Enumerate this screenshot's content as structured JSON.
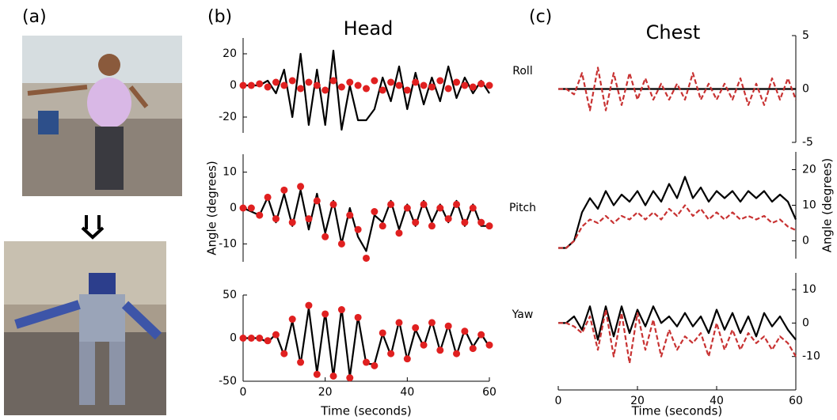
{
  "panel_labels": [
    "(a)",
    "(b)",
    "(c)"
  ],
  "chart_data": [
    {
      "type": "line",
      "title": "Head",
      "annotation": "Roll",
      "xlim": [
        0,
        60
      ],
      "ylim": [
        -30,
        30
      ],
      "yticks": [
        -20,
        0,
        20
      ],
      "y_axis_side": "left",
      "x": [
        0,
        2,
        4,
        6,
        8,
        10,
        12,
        14,
        16,
        18,
        20,
        22,
        24,
        26,
        28,
        30,
        32,
        34,
        36,
        38,
        40,
        42,
        44,
        46,
        48,
        50,
        52,
        54,
        56,
        58,
        60
      ],
      "series": [
        {
          "color": "#000000",
          "style": "line",
          "values": [
            0,
            0,
            0,
            3,
            -5,
            10,
            -20,
            20,
            -25,
            10,
            -25,
            22,
            -28,
            0,
            -22,
            -22,
            -15,
            5,
            -10,
            12,
            -15,
            8,
            -12,
            5,
            -10,
            12,
            -8,
            5,
            -5,
            3,
            -5
          ]
        },
        {
          "color": "#e02020",
          "style": "dots",
          "values": [
            0,
            0,
            1,
            -1,
            2,
            0,
            3,
            -2,
            2,
            0,
            -3,
            3,
            -1,
            2,
            0,
            -2,
            3,
            -3,
            2,
            0,
            -3,
            2,
            0,
            -1,
            3,
            -2,
            2,
            0,
            -1,
            1,
            0
          ]
        }
      ]
    },
    {
      "type": "line",
      "annotation": "Pitch",
      "y_label": "Angle (degrees)",
      "xlim": [
        0,
        60
      ],
      "ylim": [
        -15,
        15
      ],
      "yticks": [
        -10,
        0,
        10
      ],
      "y_axis_side": "left",
      "x": [
        0,
        2,
        4,
        6,
        8,
        10,
        12,
        14,
        16,
        18,
        20,
        22,
        24,
        26,
        28,
        30,
        32,
        34,
        36,
        38,
        40,
        42,
        44,
        46,
        48,
        50,
        52,
        54,
        56,
        58,
        60
      ],
      "series": [
        {
          "color": "#000000",
          "style": "line",
          "values": [
            0,
            -1,
            -2,
            3,
            -4,
            4,
            -5,
            5,
            -6,
            4,
            -7,
            2,
            -10,
            0,
            -8,
            -12,
            -2,
            -4,
            2,
            -6,
            1,
            -5,
            2,
            -4,
            1,
            -4,
            2,
            -5,
            1,
            -5,
            -5
          ]
        },
        {
          "color": "#e02020",
          "style": "dots",
          "values": [
            0,
            0,
            -2,
            3,
            -3,
            5,
            -4,
            6,
            -3,
            2,
            -8,
            1,
            -10,
            -2,
            -6,
            -14,
            -1,
            -5,
            1,
            -7,
            0,
            -4,
            1,
            -5,
            0,
            -3,
            1,
            -4,
            0,
            -4,
            -5
          ]
        }
      ]
    },
    {
      "type": "line",
      "annotation": "Yaw",
      "x_label": "Time (seconds)",
      "xlim": [
        0,
        60
      ],
      "ylim": [
        -50,
        50
      ],
      "yticks": [
        -50,
        0,
        50
      ],
      "xticks": [
        0,
        20,
        40,
        60
      ],
      "y_axis_side": "left",
      "x": [
        0,
        2,
        4,
        6,
        8,
        10,
        12,
        14,
        16,
        18,
        20,
        22,
        24,
        26,
        28,
        30,
        32,
        34,
        36,
        38,
        40,
        42,
        44,
        46,
        48,
        50,
        52,
        54,
        56,
        58,
        60
      ],
      "series": [
        {
          "color": "#000000",
          "style": "line",
          "values": [
            0,
            0,
            0,
            -5,
            5,
            -20,
            20,
            -30,
            35,
            -40,
            30,
            -45,
            35,
            -45,
            25,
            -30,
            -30,
            5,
            -20,
            20,
            -25,
            10,
            -10,
            20,
            -15,
            15,
            -20,
            10,
            -10,
            5,
            -10
          ]
        },
        {
          "color": "#e02020",
          "style": "dots",
          "values": [
            0,
            0,
            0,
            -3,
            4,
            -18,
            22,
            -28,
            38,
            -42,
            28,
            -44,
            33,
            -46,
            24,
            -28,
            -32,
            6,
            -18,
            18,
            -24,
            12,
            -8,
            18,
            -14,
            14,
            -18,
            8,
            -12,
            4,
            -8
          ]
        }
      ]
    },
    {
      "type": "line",
      "title": "Chest",
      "xlim": [
        0,
        60
      ],
      "ylim": [
        -5,
        5
      ],
      "yticks": [
        -5,
        0,
        5
      ],
      "y_axis_side": "right",
      "x": [
        0,
        2,
        4,
        6,
        8,
        10,
        12,
        14,
        16,
        18,
        20,
        22,
        24,
        26,
        28,
        30,
        32,
        34,
        36,
        38,
        40,
        42,
        44,
        46,
        48,
        50,
        52,
        54,
        56,
        58,
        60
      ],
      "series": [
        {
          "color": "#000000",
          "style": "line",
          "values": [
            0,
            0,
            0,
            0,
            0,
            0,
            0,
            0,
            0,
            0,
            0,
            0,
            0,
            0,
            0,
            0,
            0,
            0,
            0,
            0,
            0,
            0,
            0,
            0,
            0,
            0,
            0,
            0,
            0,
            0,
            0
          ]
        },
        {
          "color": "#c83232",
          "style": "dashed",
          "values": [
            0,
            0,
            -0.5,
            1.5,
            -2,
            2,
            -2,
            1.5,
            -1.5,
            1.5,
            -1,
            1,
            -1,
            0.5,
            -1,
            0.5,
            -1,
            1.5,
            -1,
            0.5,
            -1,
            0.5,
            -1,
            1,
            -1.5,
            0.5,
            -1.5,
            1,
            -1,
            1,
            -1
          ]
        }
      ]
    },
    {
      "type": "line",
      "y_label": "Angle (degrees)",
      "xlim": [
        0,
        60
      ],
      "ylim": [
        -5,
        25
      ],
      "yticks": [
        0,
        10,
        20
      ],
      "y_axis_side": "right",
      "x": [
        0,
        2,
        4,
        6,
        8,
        10,
        12,
        14,
        16,
        18,
        20,
        22,
        24,
        26,
        28,
        30,
        32,
        34,
        36,
        38,
        40,
        42,
        44,
        46,
        48,
        50,
        52,
        54,
        56,
        58,
        60
      ],
      "series": [
        {
          "color": "#000000",
          "style": "line",
          "values": [
            -2,
            -2,
            0,
            8,
            12,
            9,
            14,
            10,
            13,
            11,
            14,
            10,
            14,
            11,
            16,
            12,
            18,
            12,
            15,
            11,
            14,
            12,
            14,
            11,
            14,
            12,
            14,
            11,
            13,
            11,
            6
          ]
        },
        {
          "color": "#c83232",
          "style": "dashed",
          "values": [
            -2,
            -2,
            0,
            4,
            6,
            5,
            7,
            5,
            7,
            6,
            8,
            6,
            8,
            6,
            9,
            7,
            10,
            7,
            9,
            6,
            8,
            6,
            8,
            6,
            7,
            6,
            7,
            5,
            6,
            4,
            3
          ]
        }
      ]
    },
    {
      "type": "line",
      "x_label": "Time (seconds)",
      "xlim": [
        0,
        60
      ],
      "ylim": [
        -20,
        15
      ],
      "yticks": [
        -10,
        0,
        10
      ],
      "xticks": [
        0,
        20,
        40,
        60
      ],
      "y_axis_side": "right",
      "x": [
        0,
        2,
        4,
        6,
        8,
        10,
        12,
        14,
        16,
        18,
        20,
        22,
        24,
        26,
        28,
        30,
        32,
        34,
        36,
        38,
        40,
        42,
        44,
        46,
        48,
        50,
        52,
        54,
        56,
        58,
        60
      ],
      "series": [
        {
          "color": "#000000",
          "style": "line",
          "values": [
            0,
            0,
            2,
            -2,
            5,
            -5,
            5,
            -4,
            5,
            -3,
            4,
            -1,
            5,
            0,
            2,
            -1,
            3,
            -1,
            2,
            -3,
            4,
            -2,
            3,
            -3,
            2,
            -4,
            3,
            -1,
            2,
            -2,
            -5
          ]
        },
        {
          "color": "#c83232",
          "style": "dashed",
          "values": [
            0,
            0,
            -1,
            -3,
            2,
            -8,
            4,
            -10,
            3,
            -12,
            3,
            -8,
            1,
            -10,
            -2,
            -8,
            -4,
            -6,
            -3,
            -10,
            0,
            -8,
            -2,
            -8,
            -3,
            -6,
            -4,
            -8,
            -4,
            -6,
            -10
          ]
        }
      ]
    }
  ]
}
